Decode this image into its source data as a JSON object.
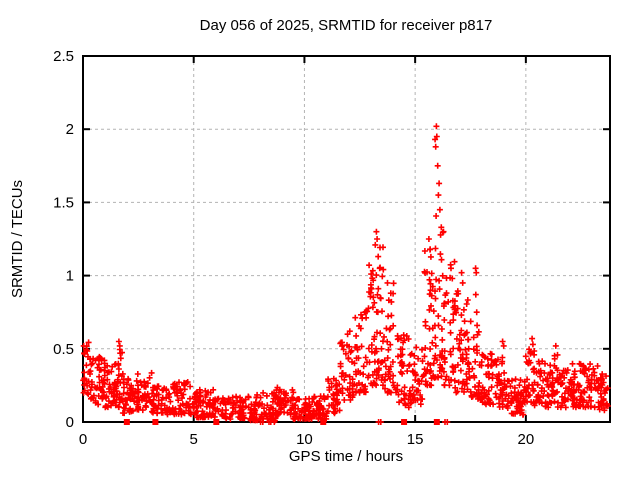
{
  "chart_data": {
    "type": "scatter",
    "title": "Day 056 of 2025, SRMTID for receiver p817",
    "xlabel": "GPS time / hours",
    "ylabel": "SRMTID / TECUs",
    "xlim": [
      0,
      23.8
    ],
    "ylim": [
      0,
      2.5
    ],
    "xticks": [
      0,
      5,
      10,
      15,
      20
    ],
    "xtick_labels": [
      "0",
      "5",
      "10",
      "15",
      "20"
    ],
    "yticks": [
      0,
      0.5,
      1,
      1.5,
      2,
      2.5
    ],
    "ytick_labels": [
      "0",
      "0.5",
      "1",
      "1.5",
      "2",
      "2.5"
    ],
    "grid": true,
    "legend": "none",
    "marker": "plus",
    "point_color": "#ff0000",
    "grid_color": "#b3b3b3",
    "axis_color": "#000000",
    "seed": 56,
    "envelope": [
      {
        "x0": 0.0,
        "x1": 0.35,
        "lo": 0.18,
        "hi": 0.55,
        "n": 25,
        "bias": 1.1
      },
      {
        "x0": 0.35,
        "x1": 1.0,
        "lo": 0.12,
        "hi": 0.45,
        "n": 50,
        "bias": 1.2
      },
      {
        "x0": 1.0,
        "x1": 1.55,
        "lo": 0.1,
        "hi": 0.4,
        "n": 40,
        "bias": 1.2
      },
      {
        "x0": 1.55,
        "x1": 1.8,
        "lo": 0.1,
        "hi": 0.5,
        "n": 20,
        "bias": 1.3
      },
      {
        "x0": 1.8,
        "x1": 2.45,
        "lo": 0.06,
        "hi": 0.3,
        "n": 40,
        "bias": 1.4
      },
      {
        "x0": 2.45,
        "x1": 3.1,
        "lo": 0.08,
        "hi": 0.35,
        "n": 40,
        "bias": 1.4
      },
      {
        "x0": 3.1,
        "x1": 3.9,
        "lo": 0.05,
        "hi": 0.25,
        "n": 50,
        "bias": 1.4
      },
      {
        "x0": 3.9,
        "x1": 5.1,
        "lo": 0.05,
        "hi": 0.3,
        "n": 70,
        "bias": 1.5
      },
      {
        "x0": 5.1,
        "x1": 6.3,
        "lo": 0.03,
        "hi": 0.22,
        "n": 70,
        "bias": 1.5
      },
      {
        "x0": 6.3,
        "x1": 7.5,
        "lo": 0.02,
        "hi": 0.18,
        "n": 70,
        "bias": 1.4
      },
      {
        "x0": 7.5,
        "x1": 8.7,
        "lo": 0.01,
        "hi": 0.2,
        "n": 70,
        "bias": 1.5
      },
      {
        "x0": 8.7,
        "x1": 9.5,
        "lo": 0.05,
        "hi": 0.24,
        "n": 50,
        "bias": 1.3
      },
      {
        "x0": 9.5,
        "x1": 10.3,
        "lo": 0.02,
        "hi": 0.16,
        "n": 50,
        "bias": 1.4
      },
      {
        "x0": 10.3,
        "x1": 11.0,
        "lo": 0.02,
        "hi": 0.18,
        "n": 42,
        "bias": 1.4
      },
      {
        "x0": 11.0,
        "x1": 11.6,
        "lo": 0.06,
        "hi": 0.3,
        "n": 36,
        "bias": 1.3
      },
      {
        "x0": 11.6,
        "x1": 12.25,
        "lo": 0.15,
        "hi": 0.55,
        "n": 40,
        "bias": 1.3
      },
      {
        "x0": 12.25,
        "x1": 12.85,
        "lo": 0.2,
        "hi": 0.8,
        "n": 40,
        "bias": 1.6
      },
      {
        "x0": 12.85,
        "x1": 13.25,
        "lo": 0.25,
        "hi": 1.1,
        "n": 35,
        "bias": 1.8
      },
      {
        "x0": 13.25,
        "x1": 13.6,
        "lo": 0.25,
        "hi": 1.2,
        "n": 30,
        "bias": 1.9
      },
      {
        "x0": 13.6,
        "x1": 14.15,
        "lo": 0.2,
        "hi": 0.95,
        "n": 38,
        "bias": 1.8
      },
      {
        "x0": 14.15,
        "x1": 14.75,
        "lo": 0.1,
        "hi": 0.6,
        "n": 40,
        "bias": 1.5
      },
      {
        "x0": 14.75,
        "x1": 15.35,
        "lo": 0.12,
        "hi": 0.55,
        "n": 40,
        "bias": 1.5
      },
      {
        "x0": 15.35,
        "x1": 15.75,
        "lo": 0.25,
        "hi": 1.2,
        "n": 35,
        "bias": 1.7
      },
      {
        "x0": 15.75,
        "x1": 16.3,
        "lo": 0.3,
        "hi": 1.45,
        "n": 45,
        "bias": 2.0
      },
      {
        "x0": 16.3,
        "x1": 16.8,
        "lo": 0.25,
        "hi": 1.1,
        "n": 42,
        "bias": 1.7
      },
      {
        "x0": 16.8,
        "x1": 17.4,
        "lo": 0.2,
        "hi": 0.9,
        "n": 45,
        "bias": 1.7
      },
      {
        "x0": 17.4,
        "x1": 18.0,
        "lo": 0.15,
        "hi": 0.7,
        "n": 40,
        "bias": 1.6
      },
      {
        "x0": 18.0,
        "x1": 18.8,
        "lo": 0.12,
        "hi": 0.48,
        "n": 55,
        "bias": 1.3
      },
      {
        "x0": 18.8,
        "x1": 19.25,
        "lo": 0.08,
        "hi": 0.45,
        "n": 30,
        "bias": 1.3
      },
      {
        "x0": 19.25,
        "x1": 19.95,
        "lo": 0.05,
        "hi": 0.3,
        "n": 45,
        "bias": 1.3
      },
      {
        "x0": 19.95,
        "x1": 20.5,
        "lo": 0.1,
        "hi": 0.5,
        "n": 38,
        "bias": 1.3
      },
      {
        "x0": 20.5,
        "x1": 21.2,
        "lo": 0.1,
        "hi": 0.42,
        "n": 48,
        "bias": 1.3
      },
      {
        "x0": 21.2,
        "x1": 21.65,
        "lo": 0.1,
        "hi": 0.48,
        "n": 30,
        "bias": 1.3
      },
      {
        "x0": 21.65,
        "x1": 22.4,
        "lo": 0.1,
        "hi": 0.42,
        "n": 52,
        "bias": 1.3
      },
      {
        "x0": 22.4,
        "x1": 23.3,
        "lo": 0.1,
        "hi": 0.4,
        "n": 60,
        "bias": 1.3
      },
      {
        "x0": 23.3,
        "x1": 23.72,
        "lo": 0.08,
        "hi": 0.35,
        "n": 30,
        "bias": 1.3
      }
    ],
    "outliers": [
      [
        0.03,
        0.52
      ],
      [
        0.05,
        0.47
      ],
      [
        1.62,
        0.55
      ],
      [
        1.66,
        0.52
      ],
      [
        1.68,
        0.47
      ],
      [
        11.95,
        0.6
      ],
      [
        12.05,
        0.62
      ],
      [
        13.2,
        1.21
      ],
      [
        13.25,
        1.3
      ],
      [
        13.28,
        1.25
      ],
      [
        13.33,
        1.13
      ],
      [
        13.4,
        1.05
      ],
      [
        13.75,
        0.95
      ],
      [
        13.9,
        0.88
      ],
      [
        15.62,
        1.25
      ],
      [
        15.68,
        1.18
      ],
      [
        15.9,
        1.93
      ],
      [
        15.93,
        1.88
      ],
      [
        15.96,
        2.02
      ],
      [
        15.98,
        1.95
      ],
      [
        16.02,
        1.75
      ],
      [
        16.08,
        1.63
      ],
      [
        16.05,
        1.55
      ],
      [
        16.12,
        1.45
      ],
      [
        16.18,
        1.33
      ],
      [
        16.28,
        1.3
      ],
      [
        16.62,
        1.05
      ],
      [
        16.68,
        0.98
      ],
      [
        17.1,
        1.02
      ],
      [
        17.15,
        0.95
      ],
      [
        17.73,
        1.05
      ],
      [
        17.76,
        1.02
      ],
      [
        17.74,
        0.87
      ],
      [
        17.78,
        0.75
      ],
      [
        17.8,
        0.66
      ],
      [
        18.95,
        0.55
      ],
      [
        19.0,
        0.52
      ],
      [
        20.28,
        0.57
      ],
      [
        20.32,
        0.53
      ],
      [
        21.35,
        0.52
      ]
    ],
    "gap_squares": [
      1.98,
      3.27,
      6.02,
      10.85,
      14.5,
      15.98
    ],
    "zero_marks": [
      8.02,
      8.12,
      8.4,
      8.48,
      8.64,
      13.35,
      13.45,
      16.35,
      16.45
    ]
  }
}
